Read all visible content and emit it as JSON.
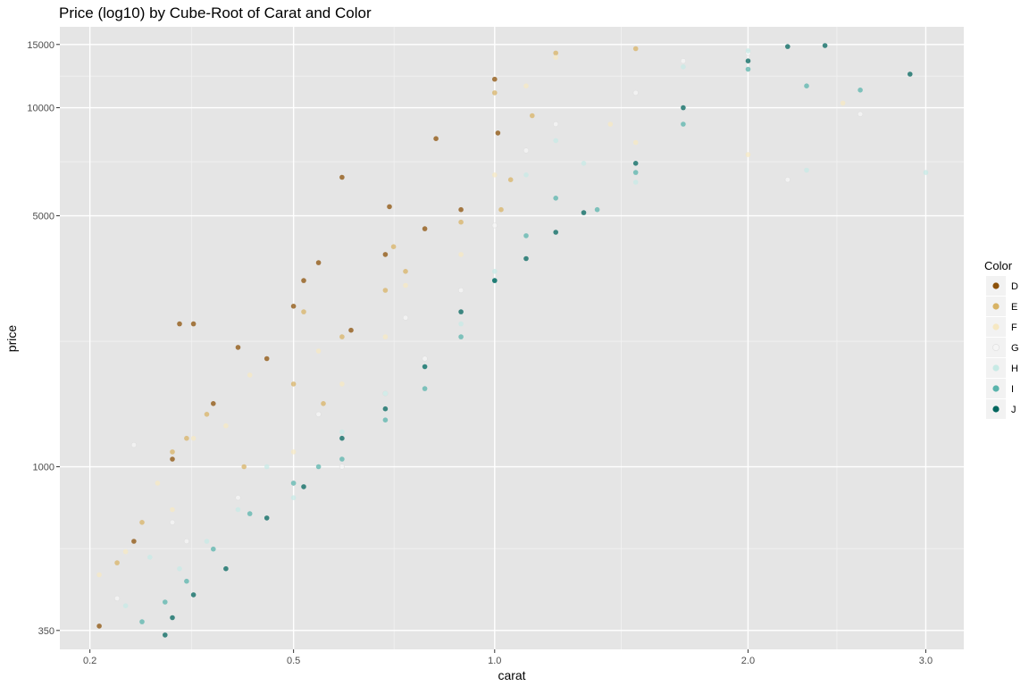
{
  "chart_data": {
    "type": "scatter",
    "title": "Price (log10) by Cube-Root of Carat and Color",
    "xlabel": "carat",
    "ylabel": "price",
    "x_scale": "cube-root",
    "y_scale": "log10",
    "xlim": [
      0.17,
      3.25
    ],
    "ylim": [
      310,
      16800
    ],
    "x_ticks": [
      0.2,
      0.5,
      1.0,
      2.0,
      3.0
    ],
    "x_tick_labels": [
      "0.2",
      "0.5",
      "1.0",
      "2.0",
      "3.0"
    ],
    "y_ticks": [
      350,
      1000,
      5000,
      10000,
      15000
    ],
    "y_tick_labels": [
      "350",
      "1000",
      "5000",
      "10000",
      "15000"
    ],
    "grid": true,
    "legend": {
      "title": "Color",
      "position": "right"
    },
    "series": [
      {
        "name": "D",
        "color": "#8c510a",
        "points": [
          [
            0.21,
            360
          ],
          [
            0.25,
            620
          ],
          [
            0.3,
            1050
          ],
          [
            0.31,
            2500
          ],
          [
            0.33,
            2500
          ],
          [
            0.4,
            2150
          ],
          [
            0.5,
            2800
          ],
          [
            0.52,
            3300
          ],
          [
            0.55,
            3700
          ],
          [
            0.6,
            6400
          ],
          [
            0.7,
            3900
          ],
          [
            0.71,
            5300
          ],
          [
            0.8,
            4600
          ],
          [
            0.9,
            5200
          ],
          [
            1.0,
            12000
          ],
          [
            1.01,
            8500
          ],
          [
            0.45,
            2000
          ],
          [
            0.36,
            1500
          ],
          [
            0.62,
            2400
          ],
          [
            0.83,
            8200
          ]
        ]
      },
      {
        "name": "E",
        "color": "#d8b365",
        "points": [
          [
            0.23,
            540
          ],
          [
            0.26,
            700
          ],
          [
            0.3,
            1100
          ],
          [
            0.32,
            1200
          ],
          [
            0.35,
            1400
          ],
          [
            0.41,
            1000
          ],
          [
            0.5,
            1700
          ],
          [
            0.52,
            2700
          ],
          [
            0.56,
            1500
          ],
          [
            0.6,
            2300
          ],
          [
            0.7,
            3100
          ],
          [
            0.72,
            4100
          ],
          [
            0.9,
            4800
          ],
          [
            1.0,
            11000
          ],
          [
            1.05,
            6300
          ],
          [
            1.12,
            9500
          ],
          [
            1.2,
            14200
          ],
          [
            1.5,
            14600
          ],
          [
            1.02,
            5200
          ],
          [
            0.75,
            3500
          ]
        ]
      },
      {
        "name": "F",
        "color": "#f6e8c3",
        "points": [
          [
            0.24,
            580
          ],
          [
            0.28,
            900
          ],
          [
            0.3,
            760
          ],
          [
            0.33,
            1200
          ],
          [
            0.38,
            1300
          ],
          [
            0.5,
            1100
          ],
          [
            0.55,
            2100
          ],
          [
            0.6,
            1700
          ],
          [
            0.7,
            2300
          ],
          [
            0.75,
            3200
          ],
          [
            0.9,
            3900
          ],
          [
            1.0,
            6500
          ],
          [
            1.1,
            11500
          ],
          [
            1.2,
            13800
          ],
          [
            1.4,
            9000
          ],
          [
            1.5,
            8000
          ],
          [
            2.0,
            7400
          ],
          [
            2.5,
            10300
          ],
          [
            0.42,
            1800
          ],
          [
            0.21,
            500
          ]
        ]
      },
      {
        "name": "G",
        "color": "#f5f5f5",
        "points": [
          [
            0.23,
            430
          ],
          [
            0.25,
            1150
          ],
          [
            0.3,
            700
          ],
          [
            0.32,
            620
          ],
          [
            0.4,
            820
          ],
          [
            0.5,
            900
          ],
          [
            0.55,
            1400
          ],
          [
            0.7,
            1600
          ],
          [
            0.75,
            2600
          ],
          [
            0.9,
            3100
          ],
          [
            1.0,
            4700
          ],
          [
            1.1,
            7600
          ],
          [
            1.2,
            9000
          ],
          [
            1.5,
            11000
          ],
          [
            1.7,
            13500
          ],
          [
            2.0,
            14200
          ],
          [
            2.2,
            6300
          ],
          [
            2.6,
            9600
          ],
          [
            0.6,
            1000
          ],
          [
            0.8,
            2000
          ]
        ]
      },
      {
        "name": "H",
        "color": "#c7eae5",
        "points": [
          [
            0.24,
            410
          ],
          [
            0.27,
            560
          ],
          [
            0.31,
            520
          ],
          [
            0.35,
            620
          ],
          [
            0.4,
            760
          ],
          [
            0.5,
            820
          ],
          [
            0.6,
            1250
          ],
          [
            0.7,
            1600
          ],
          [
            0.8,
            1900
          ],
          [
            0.9,
            2500
          ],
          [
            1.0,
            3500
          ],
          [
            1.1,
            6500
          ],
          [
            1.2,
            8100
          ],
          [
            1.5,
            6200
          ],
          [
            1.7,
            13000
          ],
          [
            2.0,
            14400
          ],
          [
            2.3,
            6700
          ],
          [
            3.0,
            6600
          ],
          [
            0.45,
            1000
          ],
          [
            1.3,
            7000
          ]
        ]
      },
      {
        "name": "I",
        "color": "#5ab4ac",
        "points": [
          [
            0.26,
            370
          ],
          [
            0.29,
            420
          ],
          [
            0.32,
            480
          ],
          [
            0.36,
            590
          ],
          [
            0.42,
            740
          ],
          [
            0.5,
            900
          ],
          [
            0.6,
            1050
          ],
          [
            0.7,
            1350
          ],
          [
            0.8,
            1650
          ],
          [
            0.9,
            2300
          ],
          [
            1.0,
            3300
          ],
          [
            1.1,
            4400
          ],
          [
            1.2,
            5600
          ],
          [
            1.5,
            6600
          ],
          [
            1.7,
            9000
          ],
          [
            2.0,
            12800
          ],
          [
            2.3,
            11500
          ],
          [
            2.6,
            11200
          ],
          [
            1.35,
            5200
          ],
          [
            0.55,
            1000
          ]
        ]
      },
      {
        "name": "J",
        "color": "#01665e",
        "points": [
          [
            0.29,
            340
          ],
          [
            0.3,
            380
          ],
          [
            0.33,
            440
          ],
          [
            0.38,
            520
          ],
          [
            0.45,
            720
          ],
          [
            0.52,
            880
          ],
          [
            0.6,
            1200
          ],
          [
            0.7,
            1450
          ],
          [
            0.8,
            1900
          ],
          [
            0.9,
            2700
          ],
          [
            1.0,
            3300
          ],
          [
            1.1,
            3800
          ],
          [
            1.2,
            4500
          ],
          [
            1.3,
            5100
          ],
          [
            1.5,
            7000
          ],
          [
            1.7,
            10000
          ],
          [
            2.0,
            13500
          ],
          [
            2.2,
            14800
          ],
          [
            2.4,
            14900
          ],
          [
            2.9,
            12400
          ]
        ]
      }
    ]
  }
}
